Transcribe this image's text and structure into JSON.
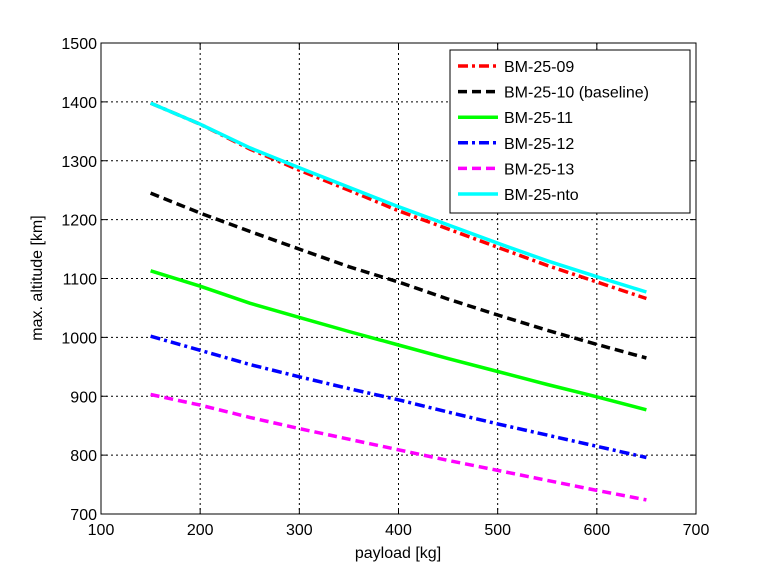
{
  "chart_data": {
    "type": "line",
    "xlabel": "payload [kg]",
    "ylabel": "max. altitude [km]",
    "xlim": [
      100,
      700
    ],
    "ylim": [
      700,
      1500
    ],
    "xticks": [
      100,
      200,
      300,
      400,
      500,
      600,
      700
    ],
    "yticks": [
      700,
      800,
      900,
      1000,
      1100,
      1200,
      1300,
      1400,
      1500
    ],
    "grid": true,
    "legend_position": "top-right",
    "x": [
      150,
      200,
      250,
      300,
      350,
      400,
      450,
      500,
      550,
      600,
      650
    ],
    "series": [
      {
        "name": "BM-25-09",
        "color": "#ff0000",
        "dash": "dashdot",
        "values": [
          1398,
          1362,
          1320,
          1284,
          1250,
          1215,
          1184,
          1153,
          1122,
          1094,
          1066
        ]
      },
      {
        "name": "BM-25-10 (baseline)",
        "color": "#000000",
        "dash": "dashed",
        "values": [
          1245,
          1211,
          1180,
          1150,
          1120,
          1094,
          1065,
          1038,
          1012,
          988,
          965
        ]
      },
      {
        "name": "BM-25-11",
        "color": "#00ff00",
        "dash": "solid",
        "values": [
          1113,
          1087,
          1058,
          1034,
          1010,
          987,
          964,
          942,
          920,
          899,
          877
        ]
      },
      {
        "name": "BM-25-12",
        "color": "#0000ff",
        "dash": "dashdot",
        "values": [
          1002,
          978,
          954,
          933,
          913,
          894,
          873,
          853,
          834,
          815,
          796
        ]
      },
      {
        "name": "BM-25-13",
        "color": "#ff00ff",
        "dash": "dashed",
        "values": [
          903,
          885,
          864,
          845,
          827,
          809,
          791,
          774,
          757,
          740,
          724
        ]
      },
      {
        "name": "BM-25-nto",
        "color": "#00ffff",
        "dash": "solid",
        "values": [
          1398,
          1362,
          1322,
          1288,
          1255,
          1222,
          1191,
          1160,
          1130,
          1103,
          1077
        ]
      }
    ]
  }
}
